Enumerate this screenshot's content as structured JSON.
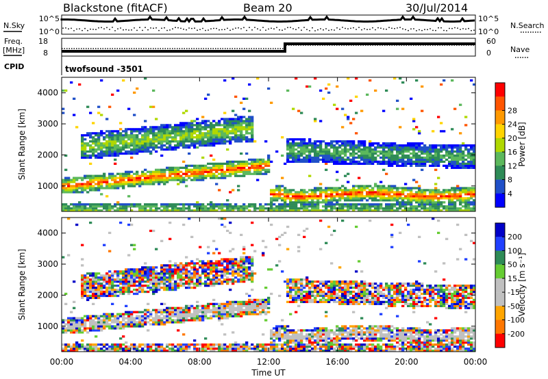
{
  "header": {
    "station": "Blackstone (fitACF)",
    "beam": "Beam 20",
    "date": "30/Jul/2014"
  },
  "left_labels": {
    "nsky": "N.Sky",
    "freq": "Freq.",
    "freq_unit": "[MHz]",
    "cpid": "CPID"
  },
  "right_labels": {
    "nsearch": "N.Search",
    "nave": "Nave"
  },
  "cpid_text": "twofsound -3501",
  "ticks": {
    "noise_left": [
      "10^5",
      "10^0"
    ],
    "noise_right": [
      "10^5",
      "10^0"
    ],
    "freq_left": [
      "18",
      "8"
    ],
    "nave_right": [
      "60",
      "0"
    ]
  },
  "colors": {
    "power": [
      "#0000ff",
      "#2050c8",
      "#2e8b57",
      "#5cb85c",
      "#b0d800",
      "#ffd400",
      "#ff9900",
      "#ff5500",
      "#ff0000"
    ],
    "velocity": [
      "#0000c8",
      "#2040ff",
      "#2e8b57",
      "#66cc33",
      "#c0c0c0",
      "#c0c0c0",
      "#ffa500",
      "#ff7700",
      "#ff0000"
    ]
  },
  "chart_data": [
    {
      "type": "heatmap",
      "name": "power",
      "ylabel": "Slant Range [km]",
      "y_ticks": [
        "1000",
        "2000",
        "3000",
        "4000"
      ],
      "ylim": [
        180,
        4500
      ],
      "colorbar": {
        "label": "Power [dB]",
        "ticks": [
          "4",
          "8",
          "12",
          "16",
          "20",
          "24",
          "28"
        ]
      }
    },
    {
      "type": "heatmap",
      "name": "velocity",
      "ylabel": "Slant Range [km]",
      "y_ticks": [
        "1000",
        "2000",
        "3000",
        "4000"
      ],
      "ylim": [
        180,
        4500
      ],
      "xlabel": "Time UT",
      "x_ticks": [
        "00:00",
        "04:00",
        "08:00",
        "12:00",
        "16:00",
        "20:00",
        "00:00"
      ],
      "colorbar": {
        "label": "Velocity [m s⁻¹]",
        "ticks": [
          "200",
          "100",
          "50",
          "15",
          "-15",
          "-50",
          "-100",
          "-200"
        ]
      }
    }
  ]
}
